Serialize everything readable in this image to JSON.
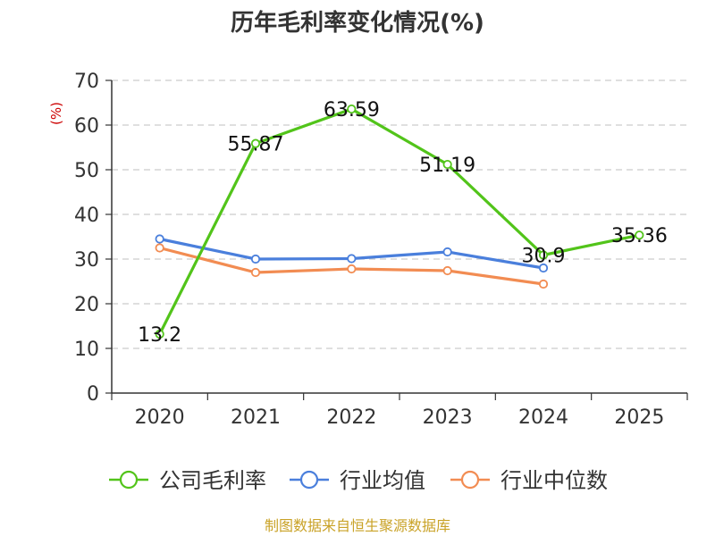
{
  "chart_data": {
    "type": "line",
    "title": "历年毛利率变化情况(%)",
    "ylabel": "(%)",
    "categories": [
      "2020",
      "2021",
      "2022",
      "2023",
      "2024",
      "2025"
    ],
    "ylim": [
      0,
      70
    ],
    "yticks": [
      0,
      10,
      20,
      30,
      40,
      50,
      60,
      70
    ],
    "grid": true,
    "legend_position": "bottom",
    "series": [
      {
        "name": "公司毛利率",
        "color": "#52c41a",
        "values": [
          13.2,
          55.87,
          63.59,
          51.19,
          30.9,
          35.36
        ],
        "labels": [
          "13.2",
          "55.87",
          "63.59",
          "51.19",
          "30.9",
          "35.36"
        ]
      },
      {
        "name": "行业均值",
        "color": "#4a7fdc",
        "values": [
          34.5,
          30.0,
          30.1,
          31.6,
          28.0,
          null
        ]
      },
      {
        "name": "行业中位数",
        "color": "#f28c52",
        "values": [
          32.5,
          27.0,
          27.8,
          27.4,
          24.4,
          null
        ]
      }
    ],
    "source": "制图数据来自恒生聚源数据库"
  }
}
